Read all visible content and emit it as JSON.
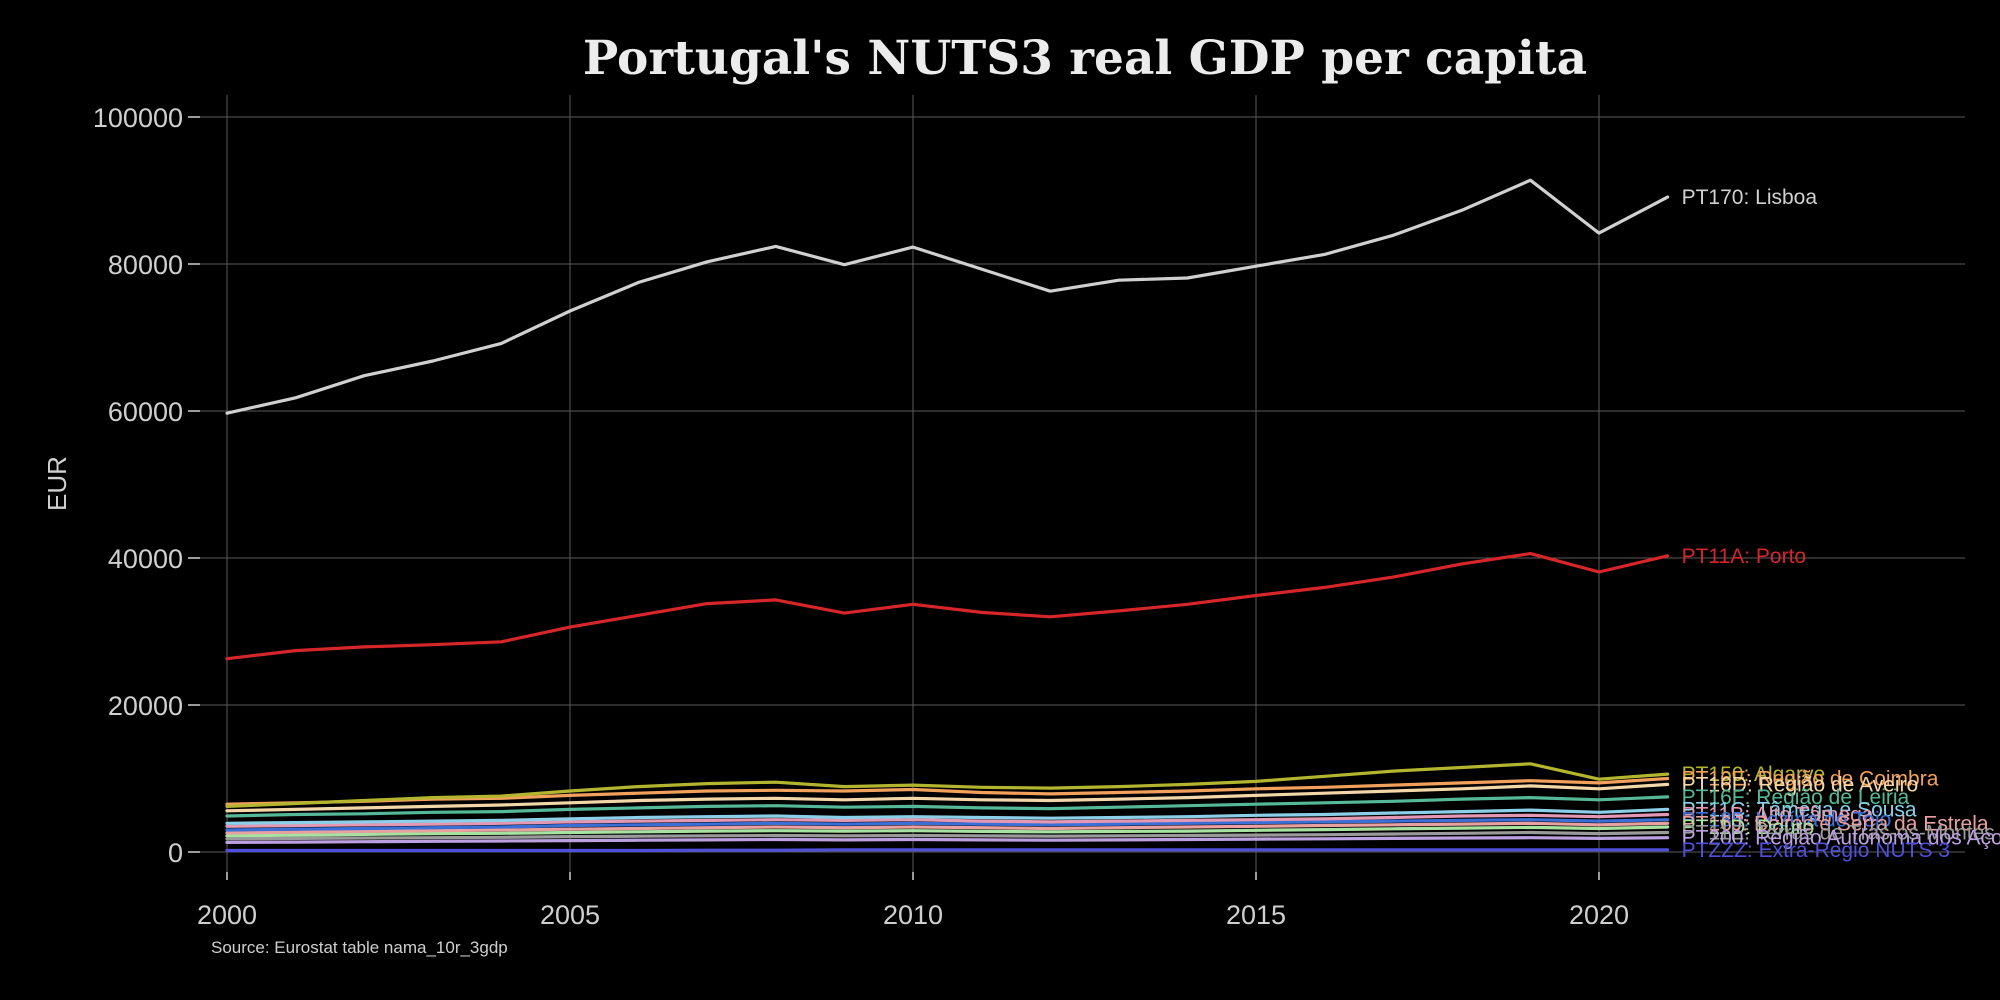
{
  "chart_data": {
    "type": "line",
    "title": "Portugal's NUTS3 real GDP per capita",
    "xlabel": "",
    "ylabel": "EUR",
    "source": "Source: Eurostat table nama_10r_3gdp",
    "xlim": [
      2000,
      2021
    ],
    "ylim": [
      0,
      100000
    ],
    "x_ticks": [
      2000,
      2005,
      2010,
      2015,
      2020
    ],
    "y_ticks": [
      0,
      20000,
      40000,
      60000,
      80000,
      100000
    ],
    "grid": true,
    "legend": "direct labels at line ends",
    "x": [
      2000,
      2001,
      2002,
      2003,
      2004,
      2005,
      2006,
      2007,
      2008,
      2009,
      2010,
      2011,
      2012,
      2013,
      2014,
      2015,
      2016,
      2017,
      2018,
      2019,
      2020,
      2021
    ],
    "series": [
      {
        "name": "PT170: Lisboa",
        "color": "#d0d0d0",
        "values": [
          59700,
          61800,
          64800,
          66800,
          69200,
          73600,
          77500,
          80300,
          82400,
          79900,
          82300,
          79300,
          76300,
          77800,
          78100,
          79700,
          81300,
          83900,
          87300,
          91400,
          84200,
          89100
        ]
      },
      {
        "name": "PT11A: Porto",
        "color": "#d7262a",
        "values": [
          26300,
          27400,
          27900,
          28200,
          28600,
          30600,
          32200,
          33800,
          34300,
          32500,
          33700,
          32600,
          32000,
          32800,
          33700,
          34900,
          36000,
          37400,
          39200,
          40600,
          38100,
          40300
        ]
      },
      {
        "name": "PT150: Algarve",
        "color": "#b4b52e",
        "values": [
          6200,
          6600,
          7000,
          7400,
          7600,
          8300,
          8900,
          9300,
          9500,
          8900,
          9100,
          8800,
          8700,
          8900,
          9200,
          9600,
          10300,
          11000,
          11500,
          12000,
          9900,
          10600
        ]
      },
      {
        "name": "PT16E: Região de Coimbra",
        "color": "#f2a15c",
        "values": [
          6500,
          6700,
          6900,
          7200,
          7300,
          7700,
          8000,
          8300,
          8400,
          8300,
          8500,
          8100,
          7900,
          8100,
          8300,
          8600,
          8800,
          9100,
          9400,
          9700,
          9400,
          10000
        ]
      },
      {
        "name": "PT16D: Região de Aveiro",
        "color": "#f4d7a8",
        "values": [
          5600,
          5800,
          6000,
          6200,
          6400,
          6700,
          7000,
          7200,
          7300,
          7100,
          7300,
          7100,
          7000,
          7200,
          7400,
          7700,
          8000,
          8300,
          8600,
          9000,
          8600,
          9200
        ]
      },
      {
        "name": "PT16F: Região de Leiria",
        "color": "#55b898",
        "values": [
          4900,
          5100,
          5200,
          5400,
          5500,
          5800,
          6000,
          6200,
          6300,
          6100,
          6200,
          6000,
          5900,
          6100,
          6300,
          6500,
          6700,
          6900,
          7200,
          7400,
          7100,
          7500
        ]
      },
      {
        "name": "PT11C: Tâmega e Sousa",
        "color": "#8bd0e8",
        "values": [
          3900,
          4000,
          4100,
          4200,
          4300,
          4500,
          4700,
          4800,
          4900,
          4700,
          4800,
          4700,
          4600,
          4700,
          4800,
          5000,
          5100,
          5300,
          5500,
          5700,
          5400,
          5800
        ]
      },
      {
        "name": "PT11B: Alto Tâmega",
        "color": "#e598b4",
        "values": [
          3500,
          3600,
          3700,
          3800,
          3900,
          4100,
          4200,
          4300,
          4400,
          4300,
          4400,
          4200,
          4100,
          4200,
          4300,
          4400,
          4500,
          4700,
          4900,
          5000,
          4800,
          5100
        ]
      },
      {
        "name": "PT185: Lezíria do Tejo",
        "color": "#3a6fd8",
        "values": [
          3000,
          3100,
          3200,
          3300,
          3400,
          3600,
          3700,
          3800,
          3900,
          3800,
          3900,
          3800,
          3700,
          3800,
          3900,
          4000,
          4100,
          4200,
          4300,
          4400,
          4200,
          4400
        ]
      },
      {
        "name": "PT16J: Beiras e Serra da Estrela",
        "color": "#e8a0a0",
        "values": [
          2600,
          2700,
          2800,
          2900,
          3000,
          3100,
          3200,
          3300,
          3400,
          3300,
          3400,
          3300,
          3200,
          3300,
          3400,
          3500,
          3600,
          3700,
          3800,
          3900,
          3700,
          3900
        ]
      },
      {
        "name": "PT11D: Douro",
        "color": "#a7e3a0",
        "values": [
          2200,
          2300,
          2400,
          2500,
          2550,
          2650,
          2750,
          2850,
          2900,
          2850,
          2900,
          2800,
          2750,
          2800,
          2850,
          2950,
          3050,
          3150,
          3250,
          3350,
          3200,
          3400
        ]
      },
      {
        "name": "PT11E: Terras de Trás-os-Montes",
        "color": "#9a9a9a",
        "values": [
          1800,
          1850,
          1900,
          1950,
          2000,
          2100,
          2150,
          2200,
          2250,
          2200,
          2250,
          2200,
          2150,
          2200,
          2250,
          2300,
          2350,
          2450,
          2550,
          2650,
          2500,
          2650
        ]
      },
      {
        "name": "PT200: Região Autónoma dos Açores",
        "color": "#bca0e0",
        "values": [
          1300,
          1350,
          1400,
          1450,
          1500,
          1550,
          1600,
          1650,
          1700,
          1650,
          1700,
          1650,
          1600,
          1650,
          1700,
          1750,
          1800,
          1850,
          1900,
          1950,
          1850,
          1950
        ]
      },
      {
        "name": "PTZZZ: Extra-Regio NUTS 3",
        "color": "#5050dc",
        "values": [
          200,
          200,
          200,
          200,
          200,
          200,
          200,
          250,
          250,
          300,
          300,
          300,
          300,
          300,
          300,
          300,
          300,
          300,
          300,
          300,
          300,
          300
        ]
      }
    ]
  }
}
